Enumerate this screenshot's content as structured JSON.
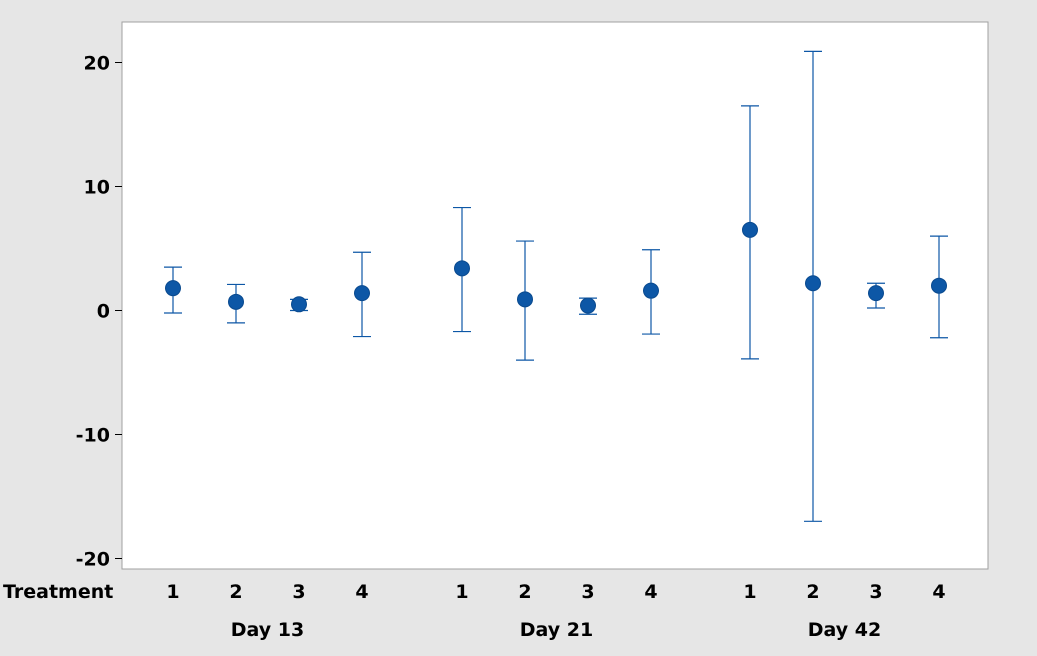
{
  "chart_data": {
    "type": "interval",
    "title": "",
    "xlabel": "",
    "ylabel": "",
    "category_axis_label": "Treatment",
    "ylim": [
      -21,
      23
    ],
    "yticks": [
      20,
      10,
      0,
      -10,
      -20
    ],
    "ytick_labels": [
      "20",
      "10",
      "0",
      "-10",
      "-20"
    ],
    "grid": false,
    "legend": "none",
    "color": "#0d57a6",
    "groups": [
      {
        "label": "Day 13",
        "treatments": [
          "1",
          "2",
          "3",
          "4"
        ],
        "means": [
          1.8,
          0.7,
          0.5,
          1.4
        ],
        "lower": [
          -0.2,
          -1.0,
          0.0,
          -2.1
        ],
        "upper": [
          3.5,
          2.1,
          0.9,
          4.7
        ]
      },
      {
        "label": "Day 21",
        "treatments": [
          "1",
          "2",
          "3",
          "4"
        ],
        "means": [
          3.4,
          0.9,
          0.4,
          1.6
        ],
        "lower": [
          -1.7,
          -4.0,
          -0.3,
          -1.9
        ],
        "upper": [
          8.3,
          5.6,
          1.0,
          4.9
        ]
      },
      {
        "label": "Day 42",
        "treatments": [
          "1",
          "2",
          "3",
          "4"
        ],
        "means": [
          6.5,
          2.2,
          1.4,
          2.0
        ],
        "lower": [
          -3.9,
          -17.0,
          0.2,
          -2.2
        ],
        "upper": [
          16.5,
          20.9,
          2.2,
          6.0
        ]
      }
    ]
  }
}
